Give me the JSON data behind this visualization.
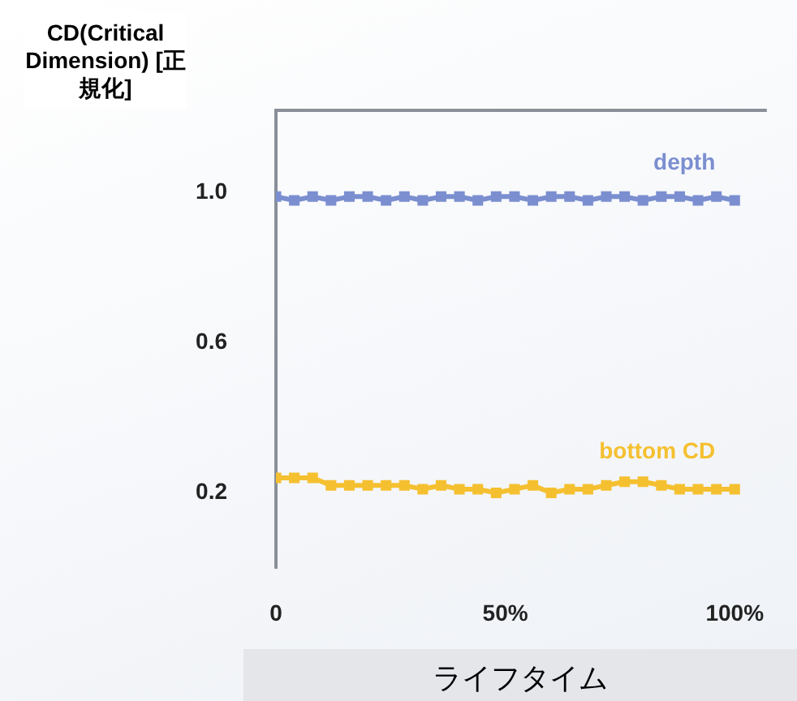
{
  "chart_data": {
    "type": "line",
    "ylabel": "CD(Critical Dimension) [正規化]",
    "xlabel": "ライフタイム",
    "marker": "square",
    "xlim": [
      0,
      107
    ],
    "xticks": [
      0,
      {
        "value": 50,
        "label": "50%"
      },
      {
        "value": 100,
        "label": "100%"
      }
    ],
    "ylim": [
      0,
      1.22
    ],
    "yticks": [
      {
        "value": 0.2,
        "label": "0.2"
      },
      {
        "value": 0.6,
        "label": "0.6"
      },
      {
        "value": 1.0,
        "label": "1.0"
      }
    ],
    "series": [
      {
        "name": "depth",
        "color": "#7b8fd0",
        "x": [
          0,
          4,
          8,
          12,
          16,
          20,
          24,
          28,
          32,
          36,
          40,
          44,
          48,
          52,
          56,
          60,
          64,
          68,
          72,
          76,
          80,
          84,
          88,
          92,
          96,
          100
        ],
        "values": [
          0.99,
          0.98,
          0.99,
          0.98,
          0.99,
          0.99,
          0.98,
          0.99,
          0.98,
          0.99,
          0.99,
          0.98,
          0.99,
          0.99,
          0.98,
          0.99,
          0.99,
          0.98,
          0.99,
          0.99,
          0.98,
          0.99,
          0.99,
          0.98,
          0.99,
          0.98
        ]
      },
      {
        "name": "bottom CD",
        "color": "#f5c030",
        "x": [
          0,
          4,
          8,
          12,
          16,
          20,
          24,
          28,
          32,
          36,
          40,
          44,
          48,
          52,
          56,
          60,
          64,
          68,
          72,
          76,
          80,
          84,
          88,
          92,
          96,
          100
        ],
        "values": [
          0.24,
          0.24,
          0.24,
          0.22,
          0.22,
          0.22,
          0.22,
          0.22,
          0.21,
          0.22,
          0.21,
          0.21,
          0.2,
          0.21,
          0.22,
          0.2,
          0.21,
          0.21,
          0.22,
          0.23,
          0.23,
          0.22,
          0.21,
          0.21,
          0.21,
          0.21
        ]
      }
    ]
  }
}
